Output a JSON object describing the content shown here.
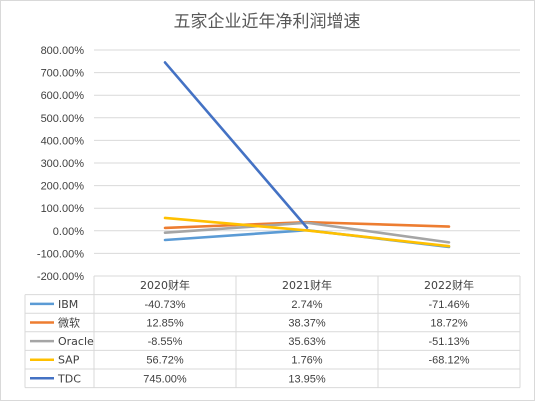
{
  "chart_data": {
    "type": "line",
    "title": "五家企业近年净利润增速",
    "categories": [
      "2020财年",
      "2021财年",
      "2022财年"
    ],
    "y_ticks": [
      "800.00%",
      "700.00%",
      "600.00%",
      "500.00%",
      "400.00%",
      "300.00%",
      "200.00%",
      "100.00%",
      "0.00%",
      "-100.00%",
      "-200.00%"
    ],
    "ylim": [
      -200,
      800
    ],
    "grid": true,
    "legend": "data-table-left",
    "series": [
      {
        "name": "IBM",
        "color": "#5B9BD5",
        "values": [
          -40.73,
          2.74,
          -71.46
        ],
        "labels": [
          "-40.73%",
          "2.74%",
          "-71.46%"
        ]
      },
      {
        "name": "微软",
        "color": "#ED7D31",
        "values": [
          12.85,
          38.37,
          18.72
        ],
        "labels": [
          "12.85%",
          "38.37%",
          "18.72%"
        ]
      },
      {
        "name": "Oracle",
        "color": "#A5A5A5",
        "values": [
          -8.55,
          35.63,
          -51.13
        ],
        "labels": [
          "-8.55%",
          "35.63%",
          "-51.13%"
        ]
      },
      {
        "name": "SAP",
        "color": "#FFC000",
        "values": [
          56.72,
          1.76,
          -68.12
        ],
        "labels": [
          "56.72%",
          "1.76%",
          "-68.12%"
        ]
      },
      {
        "name": "TDC",
        "color": "#4472C4",
        "values": [
          745.0,
          13.95,
          null
        ],
        "labels": [
          "745.00%",
          "13.95%",
          ""
        ]
      }
    ]
  }
}
